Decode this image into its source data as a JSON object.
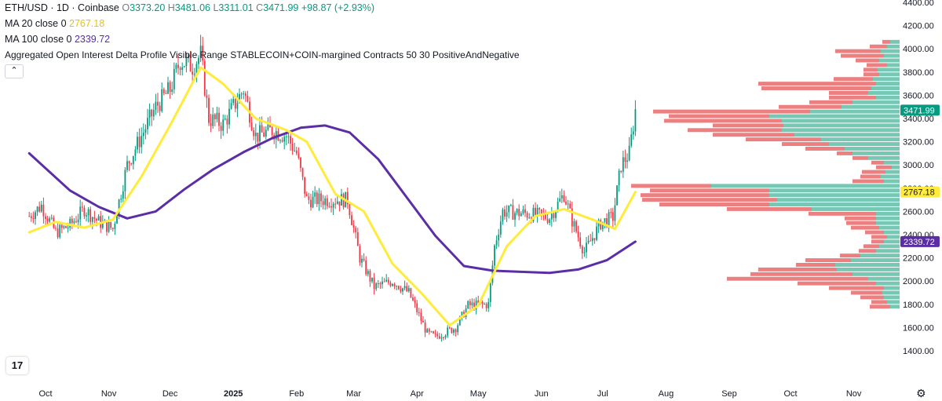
{
  "header": {
    "symbol": "ETH/USD · 1D · Coinbase",
    "o_label": "O",
    "o": "3373.20",
    "h_label": "H",
    "h": "3481.06",
    "l_label": "L",
    "l": "3311.01",
    "c_label": "C",
    "c": "3471.99",
    "change": "+98.87 (+2.93%)"
  },
  "indicators": [
    {
      "label": "MA 20 close 0",
      "value": "2767.18",
      "color": "#ffeb3b"
    },
    {
      "label": "MA 100 close 0",
      "value": "2339.72",
      "color": "#5b2ea6"
    },
    {
      "label": "Aggregated Open Interest Delta Profile Visible Range STABLECOIN+COIN-margined Contracts 50 30 PositiveAndNegative"
    }
  ],
  "collapse_icon": "chevron-up-icon",
  "logo_text": "17",
  "colors": {
    "up": "#089981",
    "down": "#f23645",
    "profile_pos": "#76c7b3",
    "profile_neg": "#ec7f7f",
    "ma20": "#ffeb3b",
    "ma100": "#5b2ea6"
  },
  "chart_data": {
    "type": "candlestick",
    "title": "ETH/USD · 1D · Coinbase",
    "x_ticks": [
      "Oct",
      "Nov",
      "Dec",
      "2025",
      "Feb",
      "Mar",
      "Apr",
      "May",
      "Jun",
      "Jul",
      "Aug",
      "Sep",
      "Oct",
      "Nov"
    ],
    "y_ticks": [
      "1400.00",
      "1600.00",
      "1800.00",
      "2000.00",
      "2200.00",
      "2400.00",
      "2600.00",
      "2800.00",
      "3000.00",
      "3200.00",
      "3400.00",
      "3600.00",
      "3800.00",
      "4000.00",
      "4200.00",
      "4400.00"
    ],
    "ylim": [
      1360,
      4420
    ],
    "price_labels": [
      {
        "value": 3471.99,
        "text": "3471.99",
        "color": "#089981"
      },
      {
        "value": 2767.18,
        "text": "2767.18",
        "color": "#ffeb3b"
      },
      {
        "value": 2339.72,
        "text": "2339.72",
        "color": "#5b2ea6"
      }
    ],
    "price_path": [
      {
        "date": "2024-09-23",
        "close": 2560
      },
      {
        "date": "2024-09-29",
        "close": 2650
      },
      {
        "date": "2024-10-06",
        "close": 2420
      },
      {
        "date": "2024-10-13",
        "close": 2480
      },
      {
        "date": "2024-10-20",
        "close": 2620
      },
      {
        "date": "2024-10-27",
        "close": 2510
      },
      {
        "date": "2024-11-03",
        "close": 2450
      },
      {
        "date": "2024-11-10",
        "close": 3000
      },
      {
        "date": "2024-11-17",
        "close": 3250
      },
      {
        "date": "2024-11-24",
        "close": 3500
      },
      {
        "date": "2024-12-01",
        "close": 3650
      },
      {
        "date": "2024-12-06",
        "close": 3900
      },
      {
        "date": "2024-12-12",
        "close": 3850
      },
      {
        "date": "2024-12-16",
        "close": 3950
      },
      {
        "date": "2024-12-20",
        "close": 3400
      },
      {
        "date": "2024-12-27",
        "close": 3350
      },
      {
        "date": "2025-01-06",
        "close": 3650
      },
      {
        "date": "2025-01-12",
        "close": 3250
      },
      {
        "date": "2025-01-20",
        "close": 3300
      },
      {
        "date": "2025-01-27",
        "close": 3250
      },
      {
        "date": "2025-02-01",
        "close": 3100
      },
      {
        "date": "2025-02-06",
        "close": 2700
      },
      {
        "date": "2025-02-16",
        "close": 2700
      },
      {
        "date": "2025-02-26",
        "close": 2700
      },
      {
        "date": "2025-03-04",
        "close": 2200
      },
      {
        "date": "2025-03-11",
        "close": 1950
      },
      {
        "date": "2025-03-20",
        "close": 2000
      },
      {
        "date": "2025-03-28",
        "close": 1900
      },
      {
        "date": "2025-04-06",
        "close": 1550
      },
      {
        "date": "2025-04-10",
        "close": 1520
      },
      {
        "date": "2025-04-20",
        "close": 1600
      },
      {
        "date": "2025-04-26",
        "close": 1790
      },
      {
        "date": "2025-05-06",
        "close": 1800
      },
      {
        "date": "2025-05-09",
        "close": 2300
      },
      {
        "date": "2025-05-13",
        "close": 2600
      },
      {
        "date": "2025-05-25",
        "close": 2580
      },
      {
        "date": "2025-06-05",
        "close": 2550
      },
      {
        "date": "2025-06-12",
        "close": 2750
      },
      {
        "date": "2025-06-16",
        "close": 2520
      },
      {
        "date": "2025-06-22",
        "close": 2250
      },
      {
        "date": "2025-06-30",
        "close": 2500
      },
      {
        "date": "2025-07-06",
        "close": 2550
      },
      {
        "date": "2025-07-10",
        "close": 3000
      },
      {
        "date": "2025-07-14",
        "close": 3100
      },
      {
        "date": "2025-07-17",
        "close": 3471.99
      }
    ],
    "ma20_path": [
      {
        "date": "2024-09-23",
        "value": 2420
      },
      {
        "date": "2024-10-06",
        "value": 2510
      },
      {
        "date": "2024-10-20",
        "value": 2460
      },
      {
        "date": "2024-11-03",
        "value": 2530
      },
      {
        "date": "2024-11-17",
        "value": 2900
      },
      {
        "date": "2024-12-01",
        "value": 3340
      },
      {
        "date": "2024-12-16",
        "value": 3840
      },
      {
        "date": "2024-12-27",
        "value": 3700
      },
      {
        "date": "2025-01-12",
        "value": 3400
      },
      {
        "date": "2025-01-27",
        "value": 3300
      },
      {
        "date": "2025-02-06",
        "value": 3200
      },
      {
        "date": "2025-02-20",
        "value": 2750
      },
      {
        "date": "2025-03-06",
        "value": 2600
      },
      {
        "date": "2025-03-20",
        "value": 2150
      },
      {
        "date": "2025-04-03",
        "value": 1900
      },
      {
        "date": "2025-04-17",
        "value": 1620
      },
      {
        "date": "2025-05-01",
        "value": 1790
      },
      {
        "date": "2025-05-15",
        "value": 2300
      },
      {
        "date": "2025-05-29",
        "value": 2560
      },
      {
        "date": "2025-06-12",
        "value": 2620
      },
      {
        "date": "2025-06-26",
        "value": 2530
      },
      {
        "date": "2025-07-07",
        "value": 2450
      },
      {
        "date": "2025-07-17",
        "value": 2767.18
      }
    ],
    "ma100_path": [
      {
        "date": "2024-09-23",
        "value": 3100
      },
      {
        "date": "2024-10-13",
        "value": 2780
      },
      {
        "date": "2024-10-27",
        "value": 2640
      },
      {
        "date": "2024-11-10",
        "value": 2540
      },
      {
        "date": "2024-11-24",
        "value": 2600
      },
      {
        "date": "2024-12-08",
        "value": 2790
      },
      {
        "date": "2024-12-22",
        "value": 2960
      },
      {
        "date": "2025-01-06",
        "value": 3110
      },
      {
        "date": "2025-01-20",
        "value": 3230
      },
      {
        "date": "2025-02-03",
        "value": 3320
      },
      {
        "date": "2025-02-15",
        "value": 3340
      },
      {
        "date": "2025-02-27",
        "value": 3280
      },
      {
        "date": "2025-03-13",
        "value": 3050
      },
      {
        "date": "2025-03-27",
        "value": 2720
      },
      {
        "date": "2025-04-10",
        "value": 2390
      },
      {
        "date": "2025-04-24",
        "value": 2130
      },
      {
        "date": "2025-05-08",
        "value": 2090
      },
      {
        "date": "2025-05-22",
        "value": 2080
      },
      {
        "date": "2025-06-05",
        "value": 2070
      },
      {
        "date": "2025-06-19",
        "value": 2100
      },
      {
        "date": "2025-07-03",
        "value": 2180
      },
      {
        "date": "2025-07-17",
        "value": 2339.72
      }
    ],
    "volume_profile": {
      "bin_width": 40,
      "bins": [
        {
          "price": 4060,
          "positive": 12,
          "negative": 10
        },
        {
          "price": 4020,
          "positive": 16,
          "negative": 22
        },
        {
          "price": 3980,
          "positive": 24,
          "negative": 58
        },
        {
          "price": 3940,
          "positive": 20,
          "negative": 55
        },
        {
          "price": 3900,
          "positive": 26,
          "negative": 30
        },
        {
          "price": 3860,
          "positive": 16,
          "negative": 26
        },
        {
          "price": 3820,
          "positive": 28,
          "negative": 18
        },
        {
          "price": 3780,
          "positive": 26,
          "negative": 20
        },
        {
          "price": 3740,
          "positive": 34,
          "negative": 50
        },
        {
          "price": 3700,
          "positive": 30,
          "negative": 150
        },
        {
          "price": 3660,
          "positive": 36,
          "negative": 140
        },
        {
          "price": 3620,
          "positive": 40,
          "negative": 50
        },
        {
          "price": 3580,
          "positive": 30,
          "negative": 60
        },
        {
          "price": 3540,
          "positive": 60,
          "negative": 55
        },
        {
          "price": 3500,
          "positive": 74,
          "negative": 80
        },
        {
          "price": 3460,
          "positive": 114,
          "negative": 200
        },
        {
          "price": 3420,
          "positive": 166,
          "negative": 128
        },
        {
          "price": 3380,
          "positive": 150,
          "negative": 150
        },
        {
          "price": 3340,
          "positive": 148,
          "negative": 90
        },
        {
          "price": 3300,
          "positive": 150,
          "negative": 120
        },
        {
          "price": 3260,
          "positive": 134,
          "negative": 104
        },
        {
          "price": 3220,
          "positive": 100,
          "negative": 96
        },
        {
          "price": 3180,
          "positive": 90,
          "negative": 60
        },
        {
          "price": 3140,
          "positive": 70,
          "negative": 50
        },
        {
          "price": 3100,
          "positive": 60,
          "negative": 20
        },
        {
          "price": 3060,
          "positive": 40,
          "negative": 20
        },
        {
          "price": 3020,
          "positive": 20,
          "negative": 16
        },
        {
          "price": 2980,
          "positive": 10,
          "negative": 20
        },
        {
          "price": 2940,
          "positive": 18,
          "negative": 30
        },
        {
          "price": 2900,
          "positive": 24,
          "negative": 26
        },
        {
          "price": 2860,
          "positive": 20,
          "negative": 40
        },
        {
          "price": 2820,
          "positive": 240,
          "negative": 102
        },
        {
          "price": 2780,
          "positive": 166,
          "negative": 152
        },
        {
          "price": 2740,
          "positive": 166,
          "negative": 164
        },
        {
          "price": 2700,
          "positive": 156,
          "negative": 172
        },
        {
          "price": 2660,
          "positive": 166,
          "negative": 140
        },
        {
          "price": 2620,
          "positive": 112,
          "negative": 108
        },
        {
          "price": 2580,
          "positive": 30,
          "negative": 86
        },
        {
          "price": 2540,
          "positive": 30,
          "negative": 40
        },
        {
          "price": 2500,
          "positive": 30,
          "negative": 38
        },
        {
          "price": 2460,
          "positive": 26,
          "negative": 36
        },
        {
          "price": 2420,
          "positive": 20,
          "negative": 24
        },
        {
          "price": 2380,
          "positive": 16,
          "negative": 20
        },
        {
          "price": 2340,
          "positive": 20,
          "negative": 16
        },
        {
          "price": 2300,
          "positive": 26,
          "negative": 20
        },
        {
          "price": 2260,
          "positive": 30,
          "negative": 22
        },
        {
          "price": 2220,
          "positive": 50,
          "negative": 26
        },
        {
          "price": 2180,
          "positive": 62,
          "negative": 58
        },
        {
          "price": 2140,
          "positive": 82,
          "negative": 50
        },
        {
          "price": 2100,
          "positive": 80,
          "negative": 100
        },
        {
          "price": 2060,
          "positive": 60,
          "negative": 130
        },
        {
          "price": 2020,
          "positive": 40,
          "negative": 180
        },
        {
          "price": 1980,
          "positive": 30,
          "negative": 100
        },
        {
          "price": 1940,
          "positive": 20,
          "negative": 70
        },
        {
          "price": 1900,
          "positive": 22,
          "negative": 40
        },
        {
          "price": 1860,
          "positive": 20,
          "negative": 30
        },
        {
          "price": 1820,
          "positive": 16,
          "negative": 20
        },
        {
          "price": 1780,
          "positive": 12,
          "negative": 26
        }
      ]
    }
  }
}
